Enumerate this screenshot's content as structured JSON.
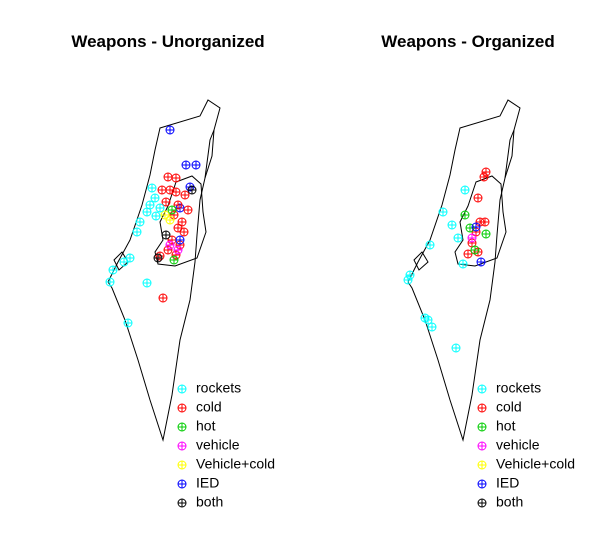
{
  "panels": [
    {
      "title": "Weapons - Unorganized",
      "legend": [
        {
          "label": "rockets",
          "color": "#00ffff"
        },
        {
          "label": "cold",
          "color": "#ff0000"
        },
        {
          "label": "hot",
          "color": "#00cc00"
        },
        {
          "label": "vehicle",
          "color": "#ff00ff"
        },
        {
          "label": "Vehicle+cold",
          "color": "#ffff00"
        },
        {
          "label": "IED",
          "color": "#0000ff"
        },
        {
          "label": "both",
          "color": "#000000"
        }
      ]
    },
    {
      "title": "Weapons - Organized",
      "legend": [
        {
          "label": "rockets",
          "color": "#00ffff"
        },
        {
          "label": "cold",
          "color": "#ff0000"
        },
        {
          "label": "hot",
          "color": "#00cc00"
        },
        {
          "label": "vehicle",
          "color": "#ff00ff"
        },
        {
          "label": "Vehicle+cold",
          "color": "#ffff00"
        },
        {
          "label": "IED",
          "color": "#0000ff"
        },
        {
          "label": "both",
          "color": "#000000"
        }
      ]
    }
  ]
}
